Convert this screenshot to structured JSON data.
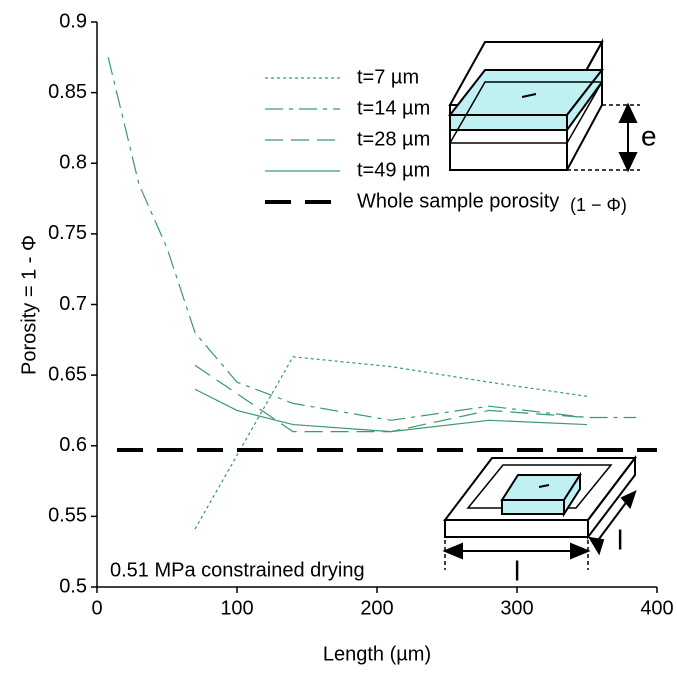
{
  "chart_data": {
    "type": "line",
    "xlabel": "Length (µm)",
    "ylabel": "Porosity = 1 - Φ",
    "xlim": [
      0,
      400
    ],
    "xticks": [
      0,
      100,
      200,
      300,
      400
    ],
    "ylim": [
      0.5,
      0.9
    ],
    "yticks": [
      0.5,
      0.55,
      0.6,
      0.65,
      0.7,
      0.75,
      0.8,
      0.85,
      0.9
    ],
    "series": [
      {
        "name": "t=7 µm",
        "color": "#3a9a6a",
        "dash": "3,3",
        "x": [
          70,
          140,
          210,
          280,
          350
        ],
        "values": [
          0.541,
          0.663,
          0.656,
          0.645,
          0.635
        ]
      },
      {
        "name": "t=14 µm",
        "color": "#3a9a6a",
        "dash": "18,6,4,6",
        "x": [
          8,
          30,
          50,
          70,
          100,
          140,
          210,
          280,
          350,
          385
        ],
        "values": [
          0.875,
          0.785,
          0.74,
          0.68,
          0.645,
          0.63,
          0.618,
          0.628,
          0.62,
          0.62
        ]
      },
      {
        "name": "t=28 µm",
        "color": "#3a9a6a",
        "dash": "18,8",
        "x": [
          70,
          140,
          210,
          280,
          350
        ],
        "values": [
          0.657,
          0.61,
          0.61,
          0.625,
          0.62
        ]
      },
      {
        "name": "t=49 µm",
        "color": "#3a9a6a",
        "dash": "none",
        "x": [
          70,
          100,
          140,
          210,
          280,
          350
        ],
        "values": [
          0.64,
          0.625,
          0.615,
          0.61,
          0.618,
          0.615
        ]
      }
    ],
    "reference_line": {
      "name": "Whole sample porosity",
      "name_suffix": "(1 − Φ)",
      "value": 0.597,
      "color": "#000000"
    },
    "annotations": {
      "condition": "0.51 MPa constrained drying",
      "thickness": "e",
      "side_1": "l",
      "side_2": "l"
    }
  }
}
